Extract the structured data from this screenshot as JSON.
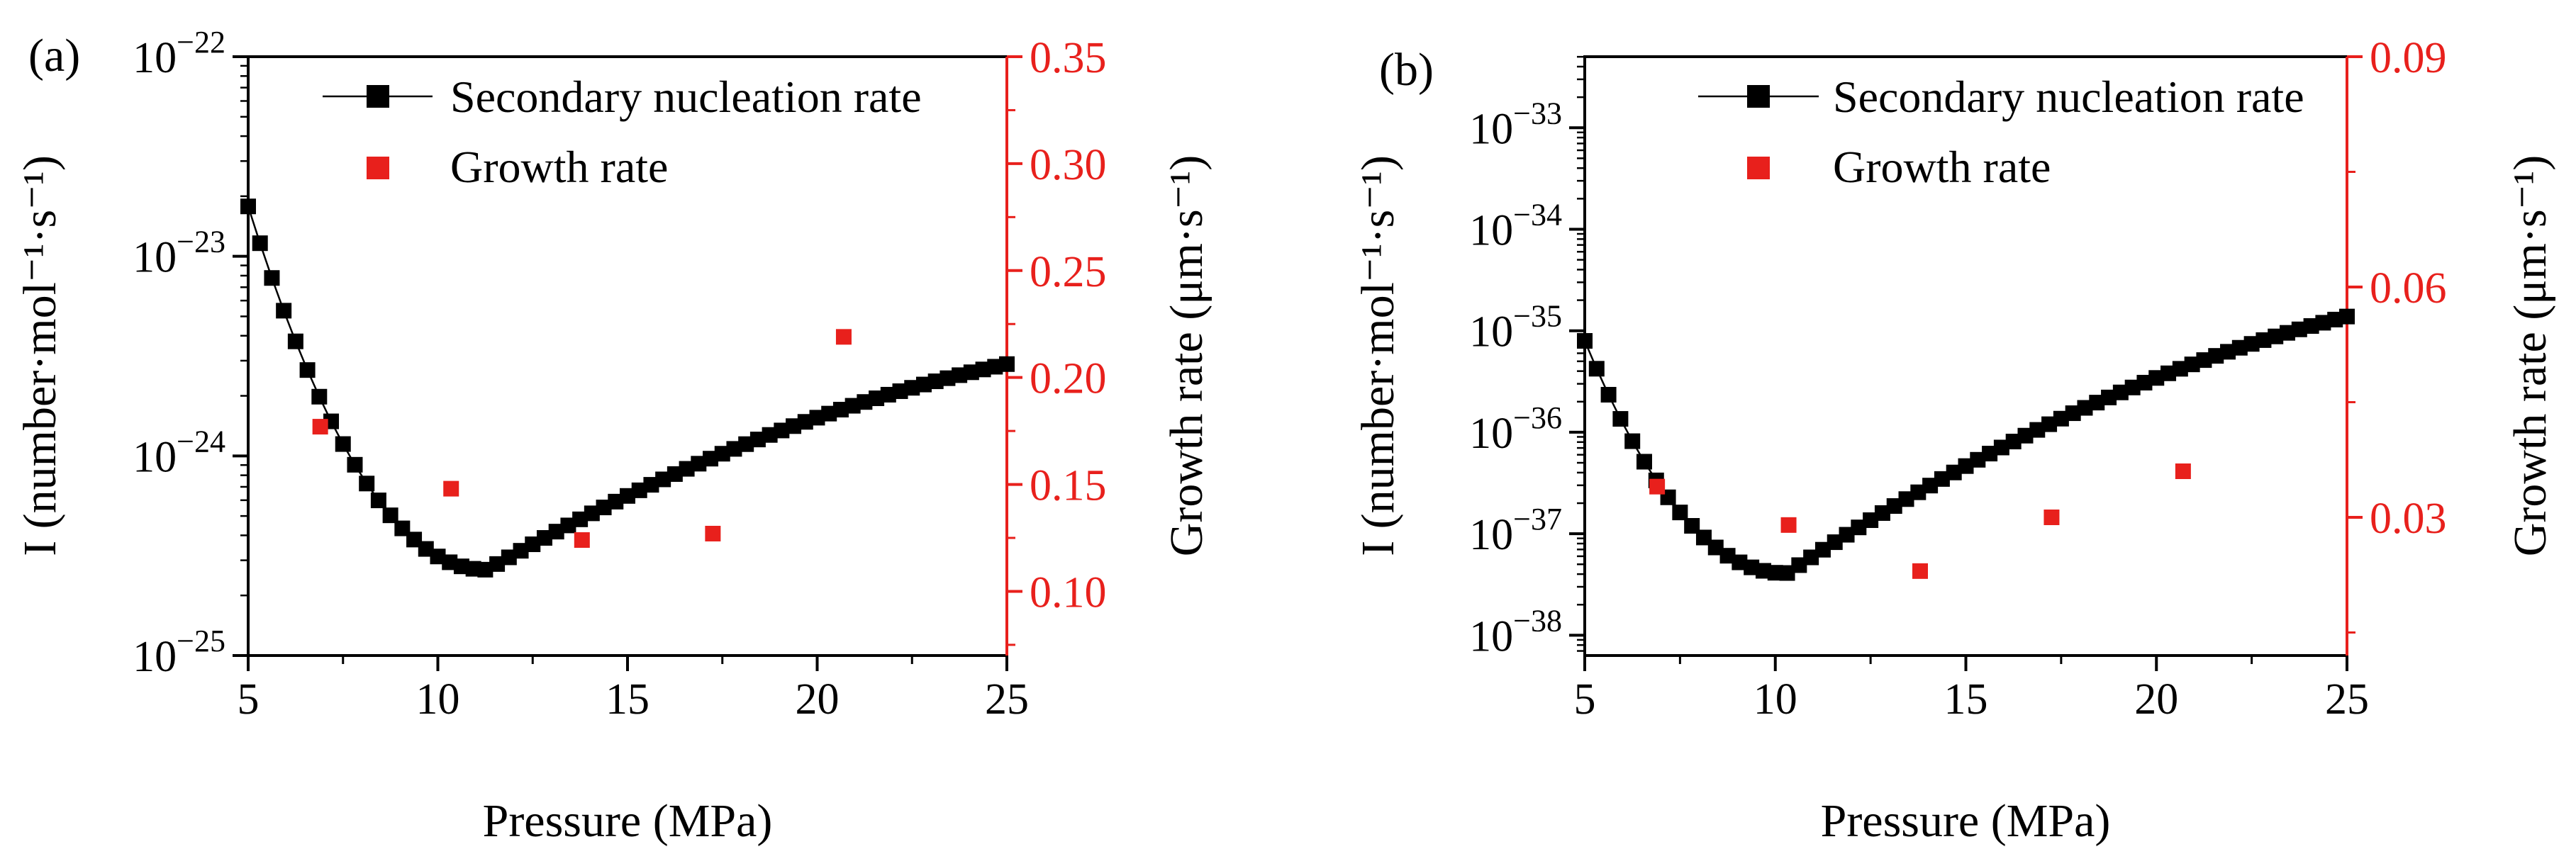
{
  "chart_data": [
    {
      "type": "scatter",
      "panel_label": "(a)",
      "xlabel": "Pressure (MPa)",
      "ylabel_left": "I (number·mol⁻¹·s⁻¹)",
      "ylabel_right": "Growth rate (μm·s⁻¹)",
      "xlim": [
        5,
        25
      ],
      "xticks": [
        "5",
        "10",
        "15",
        "20",
        "25"
      ],
      "left_axis_scale": "log",
      "left_ylim_exponent": [
        -25,
        -22
      ],
      "left_tick_exponents": [
        "−25",
        "−24",
        "−23",
        "−22"
      ],
      "left_tick_base": "10",
      "right_ylim": [
        0.07,
        0.35
      ],
      "right_ticks": [
        "0.10",
        "0.15",
        "0.20",
        "0.25",
        "0.30",
        "0.35"
      ],
      "right_axis_color": "#e8201c",
      "legend": {
        "position": "top-right",
        "entries": [
          "Secondary nucleation rate",
          "Growth rate"
        ]
      },
      "series": [
        {
          "name": "Secondary nucleation rate",
          "axis": "left",
          "color": "#000000",
          "marker": "square-with-line",
          "model": {
            "p_min": 11.3,
            "log_min": -24.57,
            "left_start": -22.75,
            "right_end": -23.54
          }
        },
        {
          "name": "Growth rate",
          "axis": "right",
          "color": "#e8201c",
          "marker": "square",
          "x": [
            6.9,
            10.35,
            13.8,
            17.25,
            20.7
          ],
          "y": [
            0.177,
            0.148,
            0.124,
            0.127,
            0.219
          ]
        }
      ]
    },
    {
      "type": "scatter",
      "panel_label": "(b)",
      "xlabel": "Pressure (MPa)",
      "ylabel_left": "I (number·mol⁻¹·s⁻¹)",
      "ylabel_right": "Growth rate (μm·s⁻¹)",
      "xlim": [
        5,
        25
      ],
      "xticks": [
        "5",
        "10",
        "15",
        "20",
        "25"
      ],
      "left_axis_scale": "log",
      "left_ylim_exponent": [
        -38.2,
        -32.3
      ],
      "left_tick_exponents": [
        "−38",
        "−37",
        "−36",
        "−35",
        "−34",
        "−33"
      ],
      "left_tick_base": "10",
      "right_ylim": [
        0.012,
        0.09
      ],
      "right_ticks": [
        "0.03",
        "0.06",
        "0.09"
      ],
      "right_axis_color": "#e8201c",
      "legend": {
        "position": "top-right",
        "entries": [
          "Secondary nucleation rate",
          "Growth rate"
        ]
      },
      "series": [
        {
          "name": "Secondary nucleation rate",
          "axis": "left",
          "color": "#000000",
          "marker": "square-with-line",
          "model": {
            "p_min": 10.3,
            "log_min": -37.39,
            "left_start": -35.1,
            "right_end": -34.86
          }
        },
        {
          "name": "Growth rate",
          "axis": "right",
          "color": "#e8201c",
          "marker": "square",
          "x": [
            6.9,
            10.35,
            13.8,
            17.25,
            20.7
          ],
          "y": [
            0.034,
            0.029,
            0.023,
            0.03,
            0.036
          ]
        }
      ]
    }
  ]
}
